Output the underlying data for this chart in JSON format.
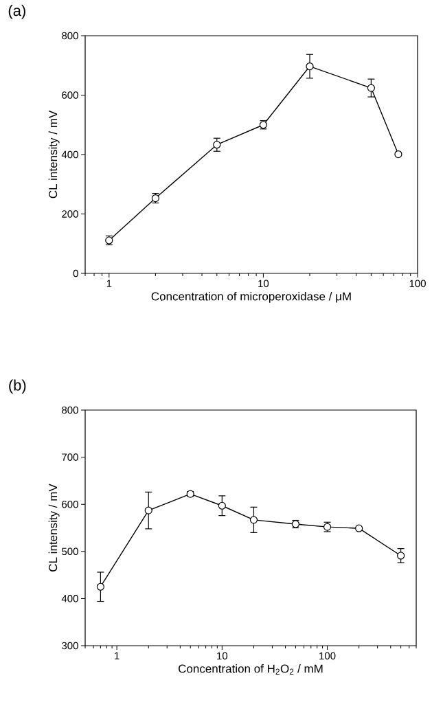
{
  "chart_data": [
    {
      "type": "line",
      "title": "(a)",
      "xlabel": "Concentration of microperoxidase / μM",
      "ylabel": "CL intensity / mV",
      "log": "x",
      "x": [
        1,
        2,
        5,
        10,
        20,
        50,
        75
      ],
      "values": [
        111,
        253,
        433,
        500,
        697,
        624,
        401
      ],
      "errors": [
        15,
        16,
        22,
        14,
        40,
        30,
        null
      ],
      "color": "#000000",
      "marker": "circle",
      "line_style": "solid",
      "xlim": [
        0.7,
        100
      ],
      "xticks": [
        1,
        10,
        100
      ],
      "ylim": [
        0,
        800
      ],
      "yticks": [
        0,
        200,
        400,
        600,
        800
      ]
    },
    {
      "type": "line",
      "title": "(b)",
      "xlabel": "Concentration of H$_{2}$O$_{2}$ / mM",
      "ylabel": "CL intensity / mV",
      "log": "x",
      "x": [
        0.7,
        2,
        5,
        10,
        20,
        50,
        100,
        200,
        500
      ],
      "values": [
        425,
        587,
        622,
        597,
        567,
        558,
        552,
        549,
        491
      ],
      "errors": [
        31,
        39,
        5,
        21,
        27,
        8,
        10,
        null,
        15
      ],
      "color": "#000000",
      "marker": "circle",
      "line_style": "solid",
      "xlim": [
        0.5,
        700
      ],
      "xticks": [
        1,
        10,
        100
      ],
      "ylim": [
        300,
        800
      ],
      "yticks": [
        300,
        400,
        500,
        600,
        700,
        800
      ]
    }
  ]
}
